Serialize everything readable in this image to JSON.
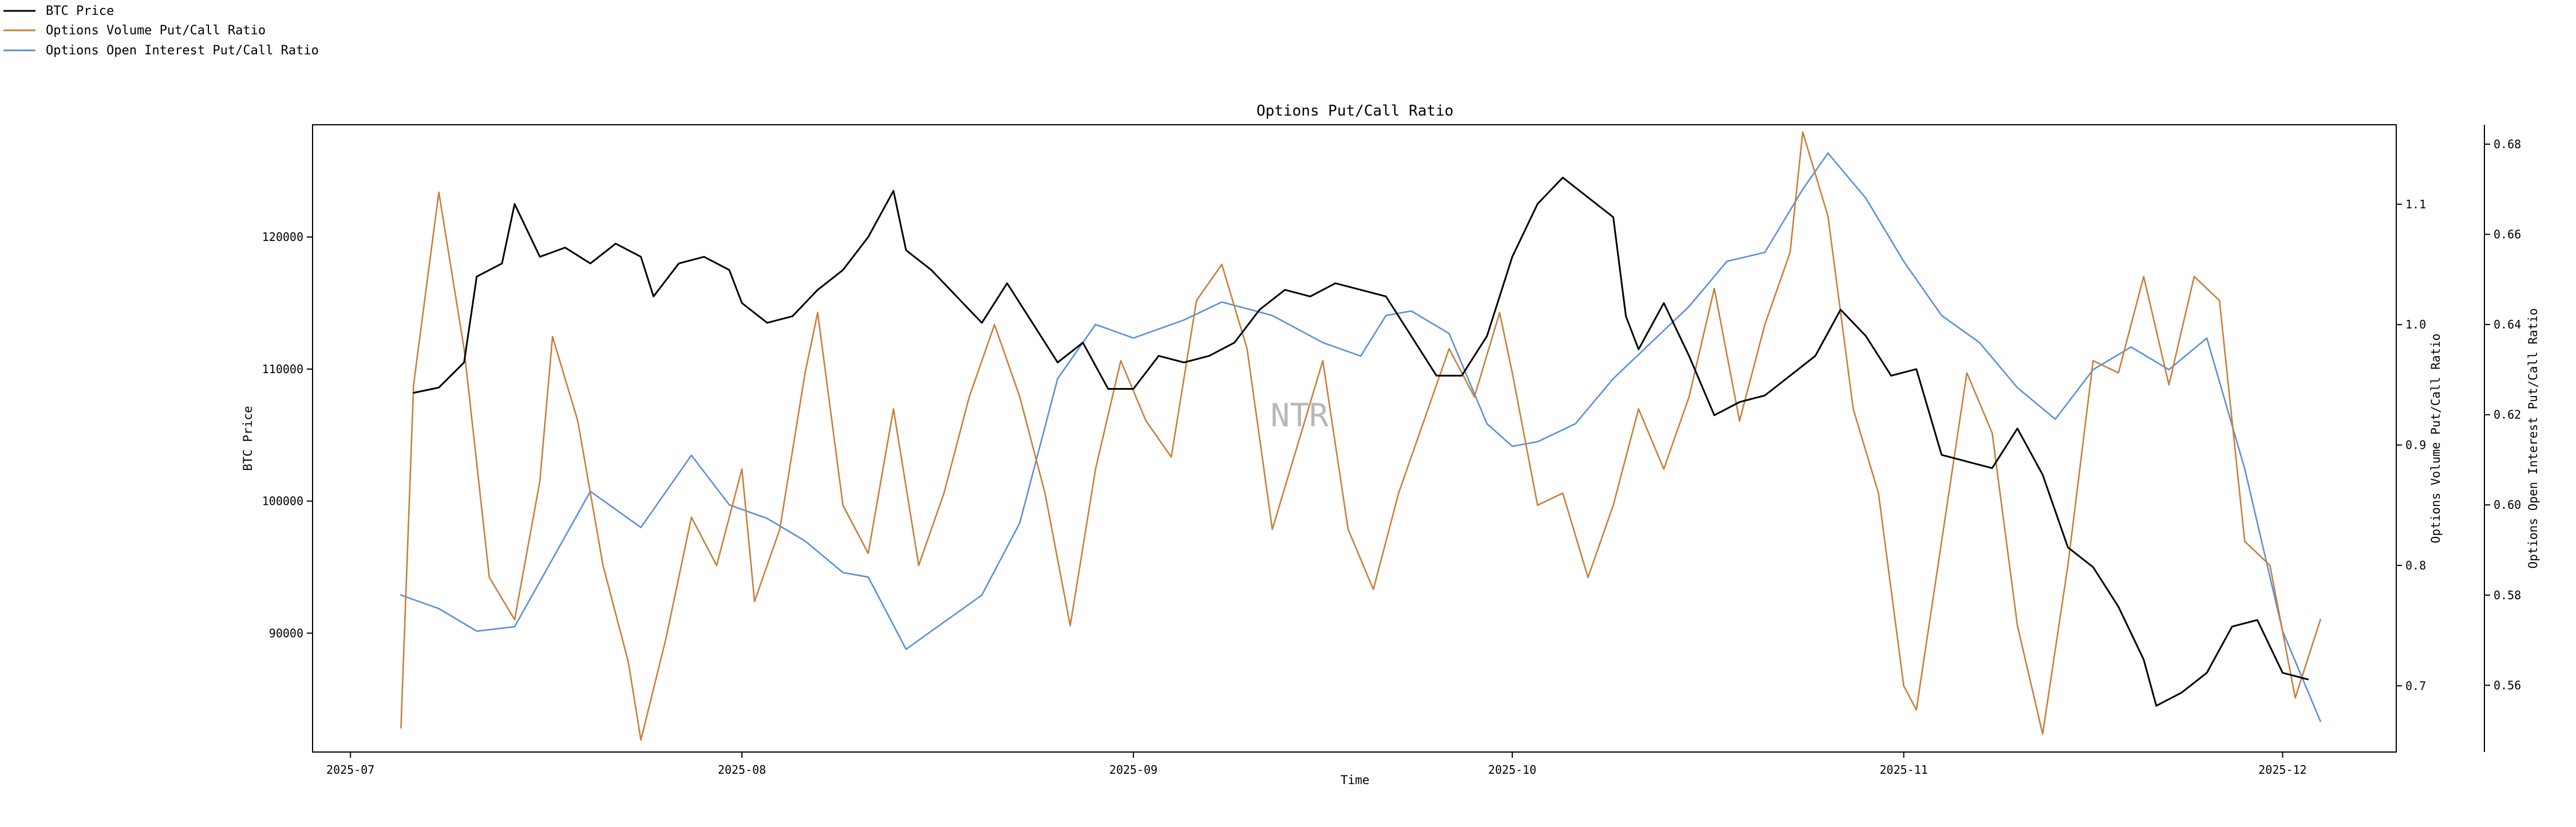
{
  "chart_data": {
    "type": "line",
    "title": "Options Put/Call Ratio",
    "xlabel": "Time",
    "ylabel_left": "BTC Price",
    "ylabel_right_1": "Options Volume Put/Call Ratio",
    "ylabel_right_2": "Options Open Interest Put/Call Ratio",
    "watermark": "NTR",
    "x_range": [
      "2025-06-28",
      "2025-12-10"
    ],
    "x_ticks": [
      "2025-07",
      "2025-08",
      "2025-09",
      "2025-10",
      "2025-11",
      "2025-12"
    ],
    "y_left": {
      "range": [
        81000,
        128500
      ],
      "ticks": [
        90000,
        100000,
        110000,
        120000
      ]
    },
    "y_right_1": {
      "range": [
        0.645,
        1.166
      ],
      "ticks": [
        0.7,
        0.8,
        0.9,
        1.0,
        1.1
      ]
    },
    "y_right_2": {
      "range": [
        0.5452,
        0.6843
      ],
      "ticks": [
        0.56,
        0.58,
        0.6,
        0.62,
        0.64,
        0.66,
        0.68
      ]
    },
    "legend": [
      {
        "label": "BTC Price",
        "color": "#000000"
      },
      {
        "label": "Options Volume Put/Call Ratio",
        "color": "#c87f3a"
      },
      {
        "label": "Options Open Interest Put/Call Ratio",
        "color": "#5b8fd9"
      }
    ],
    "series": [
      {
        "name": "BTC Price",
        "axis": "left",
        "color": "#000000",
        "points": [
          [
            "2025-07-06",
            108200
          ],
          [
            "2025-07-08",
            108600
          ],
          [
            "2025-07-10",
            110500
          ],
          [
            "2025-07-11",
            117000
          ],
          [
            "2025-07-13",
            118000
          ],
          [
            "2025-07-14",
            122500
          ],
          [
            "2025-07-16",
            118500
          ],
          [
            "2025-07-18",
            119200
          ],
          [
            "2025-07-20",
            118000
          ],
          [
            "2025-07-22",
            119500
          ],
          [
            "2025-07-24",
            118500
          ],
          [
            "2025-07-25",
            115500
          ],
          [
            "2025-07-27",
            118000
          ],
          [
            "2025-07-29",
            118500
          ],
          [
            "2025-07-31",
            117500
          ],
          [
            "2025-08-01",
            115000
          ],
          [
            "2025-08-03",
            113500
          ],
          [
            "2025-08-05",
            114000
          ],
          [
            "2025-08-07",
            116000
          ],
          [
            "2025-08-09",
            117500
          ],
          [
            "2025-08-11",
            120000
          ],
          [
            "2025-08-13",
            123500
          ],
          [
            "2025-08-14",
            119000
          ],
          [
            "2025-08-16",
            117500
          ],
          [
            "2025-08-18",
            115500
          ],
          [
            "2025-08-20",
            113500
          ],
          [
            "2025-08-22",
            116500
          ],
          [
            "2025-08-24",
            113500
          ],
          [
            "2025-08-26",
            110500
          ],
          [
            "2025-08-28",
            112000
          ],
          [
            "2025-08-30",
            108500
          ],
          [
            "2025-09-01",
            108500
          ],
          [
            "2025-09-03",
            111000
          ],
          [
            "2025-09-05",
            110500
          ],
          [
            "2025-09-07",
            111000
          ],
          [
            "2025-09-09",
            112000
          ],
          [
            "2025-09-11",
            114500
          ],
          [
            "2025-09-13",
            116000
          ],
          [
            "2025-09-15",
            115500
          ],
          [
            "2025-09-17",
            116500
          ],
          [
            "2025-09-19",
            116000
          ],
          [
            "2025-09-21",
            115500
          ],
          [
            "2025-09-23",
            112500
          ],
          [
            "2025-09-25",
            109500
          ],
          [
            "2025-09-27",
            109500
          ],
          [
            "2025-09-29",
            112500
          ],
          [
            "2025-10-01",
            118500
          ],
          [
            "2025-10-03",
            122500
          ],
          [
            "2025-10-05",
            124500
          ],
          [
            "2025-10-07",
            123000
          ],
          [
            "2025-10-09",
            121500
          ],
          [
            "2025-10-10",
            114000
          ],
          [
            "2025-10-11",
            111500
          ],
          [
            "2025-10-13",
            115000
          ],
          [
            "2025-10-15",
            111000
          ],
          [
            "2025-10-17",
            106500
          ],
          [
            "2025-10-19",
            107500
          ],
          [
            "2025-10-21",
            108000
          ],
          [
            "2025-10-23",
            109500
          ],
          [
            "2025-10-25",
            111000
          ],
          [
            "2025-10-27",
            114500
          ],
          [
            "2025-10-29",
            112500
          ],
          [
            "2025-10-31",
            109500
          ],
          [
            "2025-11-02",
            110000
          ],
          [
            "2025-11-04",
            103500
          ],
          [
            "2025-11-06",
            103000
          ],
          [
            "2025-11-08",
            102500
          ],
          [
            "2025-11-10",
            105500
          ],
          [
            "2025-11-12",
            102000
          ],
          [
            "2025-11-14",
            96500
          ],
          [
            "2025-11-16",
            95000
          ],
          [
            "2025-11-18",
            92000
          ],
          [
            "2025-11-20",
            88000
          ],
          [
            "2025-11-21",
            84500
          ],
          [
            "2025-11-23",
            85500
          ],
          [
            "2025-11-25",
            87000
          ],
          [
            "2025-11-27",
            90500
          ],
          [
            "2025-11-29",
            91000
          ],
          [
            "2025-12-01",
            87000
          ],
          [
            "2025-12-03",
            86500
          ]
        ]
      },
      {
        "name": "Options Volume Put/Call Ratio",
        "axis": "right_1",
        "color": "#c87f3a",
        "points": [
          [
            "2025-07-05",
            0.665
          ],
          [
            "2025-07-06",
            0.95
          ],
          [
            "2025-07-08",
            1.11
          ],
          [
            "2025-07-10",
            0.98
          ],
          [
            "2025-07-12",
            0.79
          ],
          [
            "2025-07-14",
            0.755
          ],
          [
            "2025-07-16",
            0.87
          ],
          [
            "2025-07-17",
            0.99
          ],
          [
            "2025-07-19",
            0.92
          ],
          [
            "2025-07-21",
            0.8
          ],
          [
            "2025-07-23",
            0.72
          ],
          [
            "2025-07-24",
            0.655
          ],
          [
            "2025-07-26",
            0.74
          ],
          [
            "2025-07-28",
            0.84
          ],
          [
            "2025-07-30",
            0.8
          ],
          [
            "2025-08-01",
            0.88
          ],
          [
            "2025-08-02",
            0.77
          ],
          [
            "2025-08-04",
            0.83
          ],
          [
            "2025-08-06",
            0.96
          ],
          [
            "2025-08-07",
            1.01
          ],
          [
            "2025-08-09",
            0.85
          ],
          [
            "2025-08-11",
            0.81
          ],
          [
            "2025-08-13",
            0.93
          ],
          [
            "2025-08-15",
            0.8
          ],
          [
            "2025-08-17",
            0.86
          ],
          [
            "2025-08-19",
            0.94
          ],
          [
            "2025-08-21",
            1.0
          ],
          [
            "2025-08-23",
            0.94
          ],
          [
            "2025-08-25",
            0.86
          ],
          [
            "2025-08-27",
            0.75
          ],
          [
            "2025-08-29",
            0.88
          ],
          [
            "2025-08-31",
            0.97
          ],
          [
            "2025-09-02",
            0.92
          ],
          [
            "2025-09-04",
            0.89
          ],
          [
            "2025-09-06",
            1.02
          ],
          [
            "2025-09-08",
            1.05
          ],
          [
            "2025-09-10",
            0.98
          ],
          [
            "2025-09-12",
            0.83
          ],
          [
            "2025-09-14",
            0.9
          ],
          [
            "2025-09-16",
            0.97
          ],
          [
            "2025-09-18",
            0.83
          ],
          [
            "2025-09-20",
            0.78
          ],
          [
            "2025-09-22",
            0.86
          ],
          [
            "2025-09-24",
            0.92
          ],
          [
            "2025-09-26",
            0.98
          ],
          [
            "2025-09-28",
            0.94
          ],
          [
            "2025-09-30",
            1.01
          ],
          [
            "2025-10-01",
            0.96
          ],
          [
            "2025-10-03",
            0.85
          ],
          [
            "2025-10-05",
            0.86
          ],
          [
            "2025-10-07",
            0.79
          ],
          [
            "2025-10-09",
            0.85
          ],
          [
            "2025-10-11",
            0.93
          ],
          [
            "2025-10-13",
            0.88
          ],
          [
            "2025-10-15",
            0.94
          ],
          [
            "2025-10-17",
            1.03
          ],
          [
            "2025-10-19",
            0.92
          ],
          [
            "2025-10-21",
            1.0
          ],
          [
            "2025-10-23",
            1.06
          ],
          [
            "2025-10-24",
            1.16
          ],
          [
            "2025-10-26",
            1.09
          ],
          [
            "2025-10-28",
            0.93
          ],
          [
            "2025-10-30",
            0.86
          ],
          [
            "2025-11-01",
            0.7
          ],
          [
            "2025-11-02",
            0.68
          ],
          [
            "2025-11-04",
            0.82
          ],
          [
            "2025-11-06",
            0.96
          ],
          [
            "2025-11-08",
            0.91
          ],
          [
            "2025-11-10",
            0.75
          ],
          [
            "2025-11-12",
            0.66
          ],
          [
            "2025-11-14",
            0.8
          ],
          [
            "2025-11-16",
            0.97
          ],
          [
            "2025-11-18",
            0.96
          ],
          [
            "2025-11-20",
            1.04
          ],
          [
            "2025-11-22",
            0.95
          ],
          [
            "2025-11-24",
            1.04
          ],
          [
            "2025-11-26",
            1.02
          ],
          [
            "2025-11-28",
            0.82
          ],
          [
            "2025-11-30",
            0.8
          ],
          [
            "2025-12-02",
            0.69
          ],
          [
            "2025-12-04",
            0.755
          ]
        ]
      },
      {
        "name": "Options Open Interest Put/Call Ratio",
        "axis": "right_2",
        "color": "#5b8fd9",
        "points": [
          [
            "2025-07-05",
            0.58
          ],
          [
            "2025-07-08",
            0.577
          ],
          [
            "2025-07-11",
            0.572
          ],
          [
            "2025-07-14",
            0.573
          ],
          [
            "2025-07-18",
            0.593
          ],
          [
            "2025-07-20",
            0.603
          ],
          [
            "2025-07-24",
            0.595
          ],
          [
            "2025-07-28",
            0.611
          ],
          [
            "2025-07-31",
            0.6
          ],
          [
            "2025-08-03",
            0.597
          ],
          [
            "2025-08-06",
            0.592
          ],
          [
            "2025-08-09",
            0.585
          ],
          [
            "2025-08-11",
            0.584
          ],
          [
            "2025-08-14",
            0.568
          ],
          [
            "2025-08-17",
            0.574
          ],
          [
            "2025-08-20",
            0.58
          ],
          [
            "2025-08-23",
            0.596
          ],
          [
            "2025-08-26",
            0.628
          ],
          [
            "2025-08-29",
            0.64
          ],
          [
            "2025-09-01",
            0.637
          ],
          [
            "2025-09-05",
            0.641
          ],
          [
            "2025-09-08",
            0.645
          ],
          [
            "2025-09-12",
            0.642
          ],
          [
            "2025-09-16",
            0.636
          ],
          [
            "2025-09-19",
            0.633
          ],
          [
            "2025-09-21",
            0.642
          ],
          [
            "2025-09-23",
            0.643
          ],
          [
            "2025-09-26",
            0.638
          ],
          [
            "2025-09-29",
            0.618
          ],
          [
            "2025-10-01",
            0.613
          ],
          [
            "2025-10-03",
            0.614
          ],
          [
            "2025-10-06",
            0.618
          ],
          [
            "2025-10-09",
            0.628
          ],
          [
            "2025-10-12",
            0.636
          ],
          [
            "2025-10-15",
            0.644
          ],
          [
            "2025-10-18",
            0.654
          ],
          [
            "2025-10-21",
            0.656
          ],
          [
            "2025-10-24",
            0.67
          ],
          [
            "2025-10-26",
            0.678
          ],
          [
            "2025-10-29",
            0.668
          ],
          [
            "2025-11-01",
            0.654
          ],
          [
            "2025-11-04",
            0.642
          ],
          [
            "2025-11-07",
            0.636
          ],
          [
            "2025-11-10",
            0.626
          ],
          [
            "2025-11-13",
            0.619
          ],
          [
            "2025-11-16",
            0.63
          ],
          [
            "2025-11-19",
            0.635
          ],
          [
            "2025-11-22",
            0.63
          ],
          [
            "2025-11-25",
            0.637
          ],
          [
            "2025-11-28",
            0.608
          ],
          [
            "2025-12-01",
            0.572
          ],
          [
            "2025-12-04",
            0.552
          ]
        ]
      }
    ]
  }
}
